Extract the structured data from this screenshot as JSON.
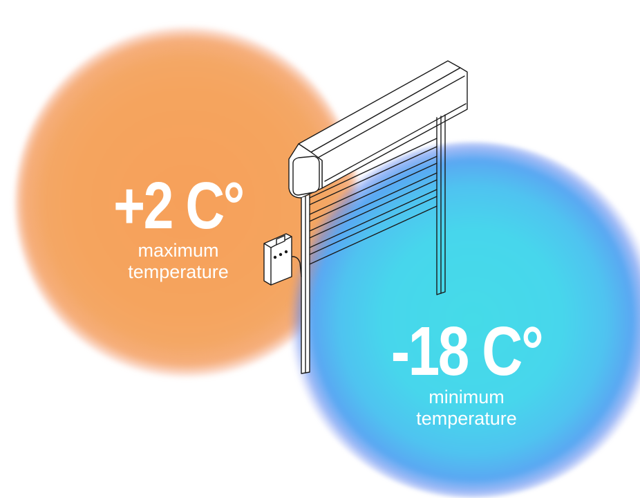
{
  "warm_zone": {
    "value": "+2 C°",
    "caption_line1": "maximum",
    "caption_line2": "temperature",
    "color": "#f6a05a"
  },
  "cold_zone": {
    "value": "-18 C°",
    "caption_line1": "minimum",
    "caption_line2": "temperature",
    "color": "#45dbe8"
  },
  "illustration": {
    "icon": "roller-door-icon",
    "control_box_icon": "control-box-icon"
  }
}
